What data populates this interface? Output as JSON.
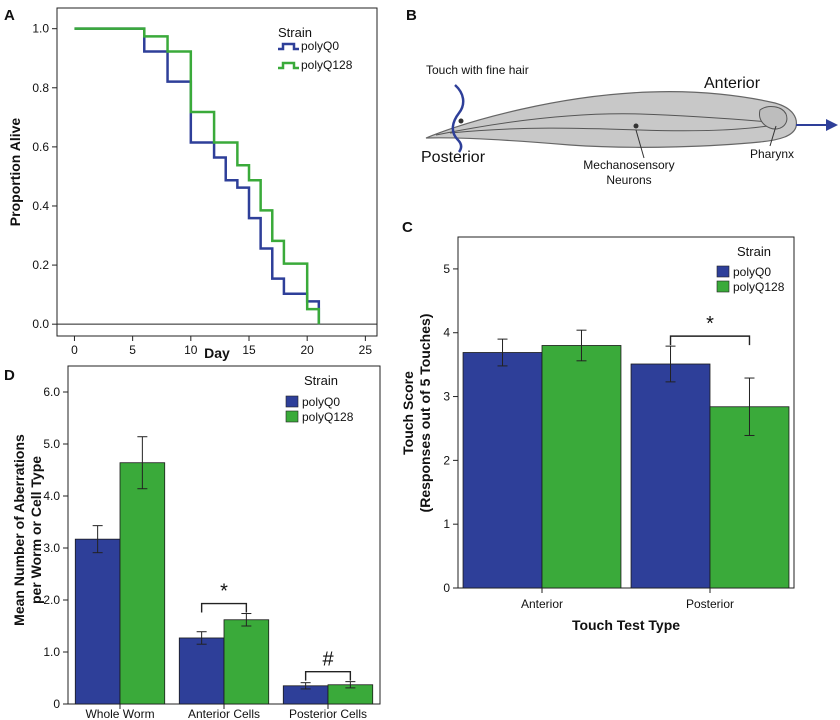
{
  "panels": {
    "A": "A",
    "B": "B",
    "C": "C",
    "D": "D"
  },
  "colors": {
    "polyQ0": "#2e3f99",
    "polyQ128": "#3aaa3a",
    "axis": "#222222",
    "worm": "#c8c8c8"
  },
  "legend_title": "Strain",
  "diagram": {
    "touch_label": "Touch with fine hair",
    "anterior": "Anterior",
    "posterior": "Posterior",
    "mechano_line1": "Mechanosensory",
    "mechano_line2": "Neurons",
    "pharynx": "Pharynx"
  },
  "chart_data": [
    {
      "id": "A",
      "type": "line",
      "step": true,
      "xlabel": "Day",
      "ylabel": "Proportion Alive",
      "xlim": [
        -1.5,
        26
      ],
      "ylim": [
        -0.04,
        1.07
      ],
      "xticks": [
        0,
        5,
        10,
        15,
        20,
        25
      ],
      "yticks": [
        0.0,
        0.2,
        0.4,
        0.6,
        0.8,
        1.0
      ],
      "ytick_labels": [
        "0.0",
        "0.2",
        "0.4",
        "0.6",
        "0.8",
        "1.0"
      ],
      "series": [
        {
          "name": "polyQ0",
          "x": [
            0,
            6,
            8,
            10,
            12,
            13,
            14,
            15,
            16,
            17,
            18,
            20,
            21
          ],
          "y": [
            1.0,
            0.923,
            0.821,
            0.615,
            0.564,
            0.487,
            0.462,
            0.359,
            0.256,
            0.154,
            0.103,
            0.077,
            0.0
          ]
        },
        {
          "name": "polyQ128",
          "x": [
            0,
            6,
            8,
            10,
            11,
            12,
            14,
            15,
            16,
            17,
            18,
            20,
            21
          ],
          "y": [
            1.0,
            0.974,
            0.923,
            0.718,
            0.718,
            0.615,
            0.538,
            0.487,
            0.385,
            0.282,
            0.205,
            0.051,
            0.0
          ]
        }
      ]
    },
    {
      "id": "C",
      "type": "bar",
      "categories": [
        "Anterior",
        "Posterior"
      ],
      "xlabel": "Touch Test Type",
      "ylabel_line1": "Touch Score",
      "ylabel_line2": "(Responses out of 5 Touches)",
      "ylim": [
        0,
        5.5
      ],
      "yticks": [
        0,
        1,
        2,
        3,
        4,
        5
      ],
      "ytick_labels": [
        "0",
        "1",
        "2",
        "3",
        "4",
        "5"
      ],
      "series": [
        {
          "name": "polyQ0",
          "values": [
            3.69,
            3.51
          ],
          "err": [
            0.21,
            0.28
          ]
        },
        {
          "name": "polyQ128",
          "values": [
            3.8,
            2.84
          ],
          "err": [
            0.24,
            0.45
          ]
        }
      ],
      "annotations": [
        {
          "category": 1,
          "label": "*"
        }
      ]
    },
    {
      "id": "D",
      "type": "bar",
      "categories": [
        "Whole Worm",
        "Anterior Cells",
        "Posterior Cells"
      ],
      "xlabel": "",
      "ylabel_line1": "Mean Number of Aberrations",
      "ylabel_line2": "per Worm or Cell Type",
      "ylim": [
        0,
        6.5
      ],
      "yticks": [
        0,
        1,
        2,
        3,
        4,
        5,
        6
      ],
      "ytick_labels": [
        "0",
        "1.0",
        "2.0",
        "3.0",
        "4.0",
        "5.0",
        "6.0"
      ],
      "series": [
        {
          "name": "polyQ0",
          "values": [
            3.17,
            1.27,
            0.35
          ],
          "err": [
            0.26,
            0.12,
            0.06
          ]
        },
        {
          "name": "polyQ128",
          "values": [
            4.64,
            1.62,
            0.37
          ],
          "err": [
            0.5,
            0.12,
            0.06
          ]
        }
      ],
      "annotations": [
        {
          "category": 1,
          "label": "*"
        },
        {
          "category": 2,
          "label": "#"
        }
      ]
    }
  ]
}
